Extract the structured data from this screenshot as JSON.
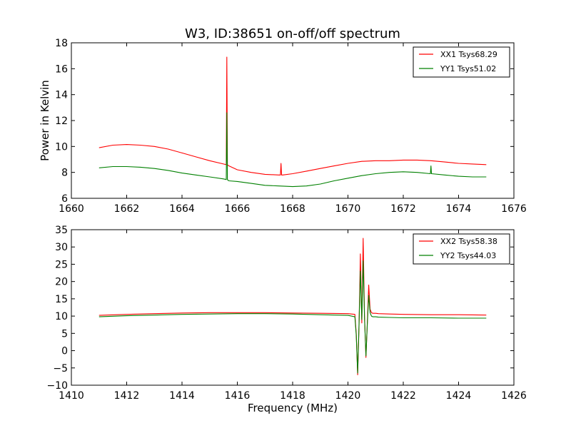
{
  "figure": {
    "title": "W3, ID:38651 on-off/off spectrum",
    "xlabel": "Frequency (MHz)"
  },
  "chart_data": [
    {
      "type": "line",
      "ylabel": "Power in Kelvin",
      "xlim": [
        1660,
        1676
      ],
      "ylim": [
        6,
        18
      ],
      "xticks": [
        "1660",
        "1662",
        "1664",
        "1666",
        "1668",
        "1670",
        "1672",
        "1674",
        "1676"
      ],
      "yticks": [
        "6",
        "8",
        "10",
        "12",
        "14",
        "16",
        "18"
      ],
      "legend_position": "top-right",
      "series": [
        {
          "name": "XX1 Tsys68.29",
          "color": "#ff0000",
          "x": [
            1661.0,
            1661.5,
            1662.0,
            1662.5,
            1663.0,
            1663.5,
            1664.0,
            1664.5,
            1665.0,
            1665.5,
            1665.6,
            1665.62,
            1665.64,
            1665.66,
            1665.7,
            1666.0,
            1666.5,
            1667.0,
            1667.5,
            1667.56,
            1667.58,
            1667.6,
            1667.64,
            1668.0,
            1668.5,
            1669.0,
            1669.5,
            1670.0,
            1670.5,
            1671.0,
            1671.5,
            1672.0,
            1672.5,
            1673.0,
            1673.5,
            1674.0,
            1674.5,
            1675.0
          ],
          "y": [
            9.9,
            10.1,
            10.15,
            10.1,
            10.0,
            9.8,
            9.5,
            9.2,
            8.9,
            8.65,
            8.6,
            16.9,
            8.6,
            8.55,
            8.5,
            8.2,
            8.0,
            7.85,
            7.8,
            7.8,
            8.7,
            7.8,
            7.8,
            7.9,
            8.1,
            8.3,
            8.5,
            8.7,
            8.85,
            8.9,
            8.9,
            8.95,
            8.95,
            8.9,
            8.8,
            8.7,
            8.65,
            8.6
          ]
        },
        {
          "name": "YY1 Tsys51.02",
          "color": "#008000",
          "x": [
            1661.0,
            1661.5,
            1662.0,
            1662.5,
            1663.0,
            1663.5,
            1664.0,
            1664.5,
            1665.0,
            1665.5,
            1665.6,
            1665.62,
            1665.64,
            1665.66,
            1665.7,
            1666.0,
            1666.5,
            1667.0,
            1667.5,
            1668.0,
            1668.5,
            1669.0,
            1669.5,
            1670.0,
            1670.5,
            1671.0,
            1671.5,
            1672.0,
            1672.5,
            1672.98,
            1673.0,
            1673.02,
            1673.5,
            1674.0,
            1674.5,
            1675.0
          ],
          "y": [
            8.35,
            8.45,
            8.45,
            8.4,
            8.3,
            8.15,
            7.95,
            7.8,
            7.65,
            7.5,
            7.45,
            12.6,
            7.45,
            7.4,
            7.35,
            7.3,
            7.15,
            7.0,
            6.95,
            6.9,
            6.95,
            7.1,
            7.35,
            7.55,
            7.75,
            7.9,
            8.0,
            8.05,
            8.0,
            7.9,
            8.5,
            7.9,
            7.8,
            7.7,
            7.65,
            7.65
          ]
        }
      ]
    },
    {
      "type": "line",
      "xlabel": "Frequency (MHz)",
      "xlim": [
        1410,
        1426
      ],
      "ylim": [
        -10,
        35
      ],
      "xticks": [
        "1410",
        "1412",
        "1414",
        "1416",
        "1418",
        "1420",
        "1422",
        "1424",
        "1426"
      ],
      "yticks": [
        "−10",
        "−5",
        "0",
        "5",
        "10",
        "15",
        "20",
        "25",
        "30",
        "35"
      ],
      "legend_position": "top-right",
      "series": [
        {
          "name": "XX2 Tsys58.38",
          "color": "#ff0000",
          "x": [
            1411.0,
            1412.0,
            1413.0,
            1414.0,
            1415.0,
            1416.0,
            1417.0,
            1418.0,
            1419.0,
            1420.0,
            1420.25,
            1420.3,
            1420.35,
            1420.4,
            1420.45,
            1420.5,
            1420.55,
            1420.6,
            1420.65,
            1420.7,
            1420.75,
            1420.8,
            1420.85,
            1420.9,
            1420.95,
            1421.0,
            1421.1,
            1421.5,
            1422.0,
            1423.0,
            1424.0,
            1425.0
          ],
          "y": [
            10.2,
            10.5,
            10.7,
            10.9,
            11.0,
            11.0,
            11.0,
            10.9,
            10.8,
            10.7,
            10.5,
            5.0,
            -7.0,
            7.0,
            28.0,
            8.0,
            32.5,
            10.0,
            -2.0,
            8.0,
            19.0,
            12.0,
            11.0,
            10.8,
            10.8,
            10.8,
            10.7,
            10.6,
            10.5,
            10.4,
            10.4,
            10.3
          ]
        },
        {
          "name": "YY2 Tsys44.03",
          "color": "#008000",
          "x": [
            1411.0,
            1412.0,
            1413.0,
            1414.0,
            1415.0,
            1416.0,
            1417.0,
            1418.0,
            1419.0,
            1420.0,
            1420.25,
            1420.3,
            1420.35,
            1420.4,
            1420.45,
            1420.5,
            1420.55,
            1420.6,
            1420.65,
            1420.7,
            1420.75,
            1420.8,
            1420.85,
            1420.9,
            1420.95,
            1421.0,
            1421.1,
            1421.5,
            1422.0,
            1423.0,
            1424.0,
            1425.0
          ],
          "y": [
            9.8,
            10.1,
            10.3,
            10.5,
            10.6,
            10.7,
            10.7,
            10.6,
            10.4,
            10.2,
            9.8,
            4.5,
            -6.5,
            7.5,
            23.0,
            9.0,
            26.0,
            9.5,
            -1.5,
            7.5,
            16.0,
            11.0,
            10.0,
            9.8,
            9.8,
            9.8,
            9.7,
            9.6,
            9.5,
            9.5,
            9.4,
            9.4
          ]
        }
      ]
    }
  ]
}
